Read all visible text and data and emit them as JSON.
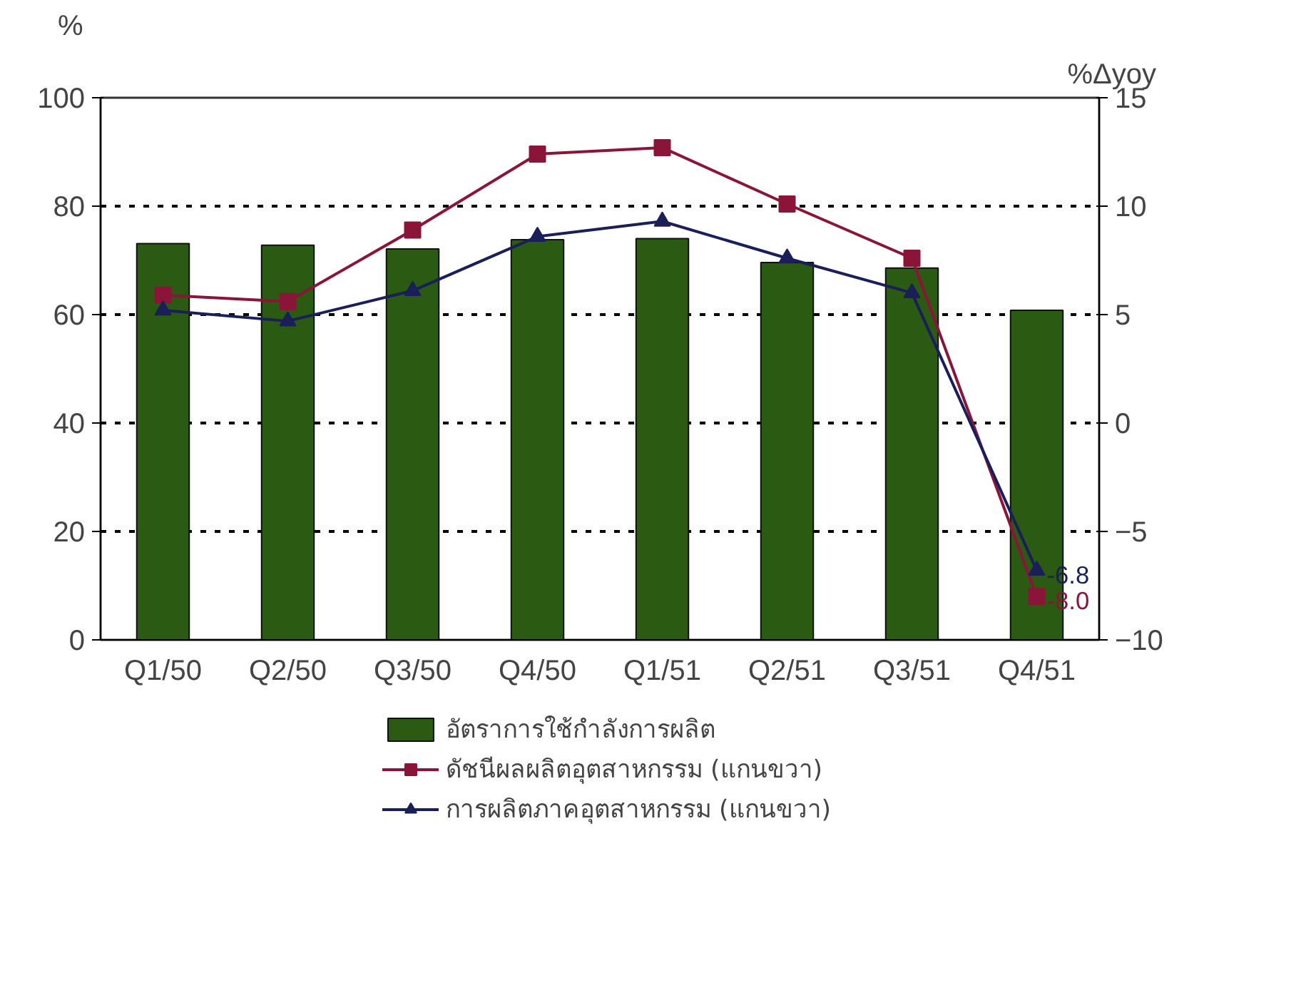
{
  "chart_data": {
    "type": "bar",
    "categories": [
      "Q1/50",
      "Q2/50",
      "Q3/50",
      "Q4/50",
      "Q1/51",
      "Q2/51",
      "Q3/51",
      "Q4/51"
    ],
    "ylabel": "%",
    "y2label": "%Δyoy",
    "ylim": [
      0,
      100
    ],
    "yticks": [
      0,
      20,
      40,
      60,
      80,
      100
    ],
    "y2lim": [
      -10,
      15
    ],
    "y2ticks": [
      -10,
      -5,
      0,
      5,
      10,
      15
    ],
    "grid": "y",
    "legend": "bottom",
    "series": [
      {
        "name": "อัตราการใช้กำลังการผลิต",
        "color": "#2b5a12",
        "values": [
          73.1,
          72.8,
          72.1,
          73.8,
          74.0,
          69.6,
          68.6,
          60.8
        ]
      },
      {
        "name": "ดัชนีผลผลิตอุตสาหกรรม (แกนขวา)",
        "type": "line",
        "axis": "y2",
        "marker": "square",
        "color": "#8b1538",
        "values": [
          5.9,
          5.6,
          8.9,
          12.4,
          12.7,
          10.1,
          7.6,
          -8.0
        ],
        "value_labels": [
          null,
          null,
          null,
          null,
          null,
          null,
          null,
          "-8.0"
        ]
      },
      {
        "name": "การผลิตภาคอุตสาหกรรม (แกนขวา)",
        "type": "line",
        "axis": "y2",
        "marker": "triangle",
        "color": "#1a1f5a",
        "values": [
          5.2,
          4.7,
          6.1,
          8.6,
          9.3,
          7.6,
          6.0,
          -6.8
        ],
        "value_labels": [
          null,
          null,
          null,
          null,
          null,
          null,
          null,
          "-6.8"
        ]
      }
    ]
  }
}
